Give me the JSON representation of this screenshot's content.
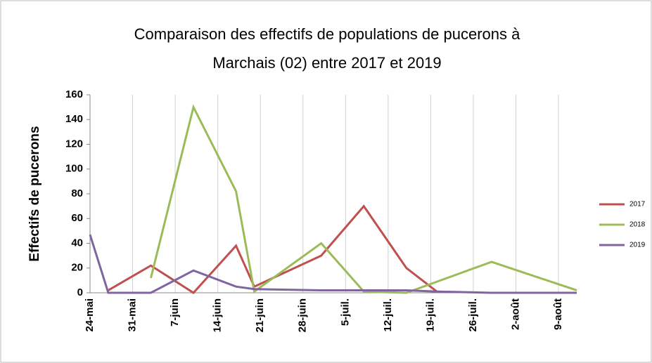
{
  "chart_data": {
    "type": "line",
    "title": [
      "Comparaison  des effectifs de populations  de pucerons à",
      "Marchais (02) entre 2017 et 2019"
    ],
    "y_label": "Effectifs de pucerons",
    "xlim": [
      0,
      80
    ],
    "xticks": [
      {
        "value": 0,
        "label": "24-mai"
      },
      {
        "value": 7,
        "label": "31-mai"
      },
      {
        "value": 14,
        "label": "7-juin"
      },
      {
        "value": 21,
        "label": "14-juin"
      },
      {
        "value": 28,
        "label": "21-juin"
      },
      {
        "value": 35,
        "label": "28-juin"
      },
      {
        "value": 42,
        "label": "5-juil."
      },
      {
        "value": 49,
        "label": "12-juil."
      },
      {
        "value": 56,
        "label": "19-juil."
      },
      {
        "value": 63,
        "label": "26-juil."
      },
      {
        "value": 70,
        "label": "2-août"
      },
      {
        "value": 77,
        "label": "9-août"
      }
    ],
    "ylim": [
      0,
      160
    ],
    "yticks": [
      0,
      20,
      40,
      60,
      80,
      100,
      120,
      140,
      160
    ],
    "grid": true,
    "legend": "right",
    "series": [
      {
        "name": "2017",
        "color": "#c0504d",
        "x": [
          3,
          10,
          17,
          24,
          27,
          38,
          45,
          52,
          57
        ],
        "values": [
          2,
          22,
          0,
          38,
          5,
          30,
          70,
          20,
          1
        ]
      },
      {
        "name": "2018",
        "color": "#9bbb59",
        "x": [
          10,
          17,
          24,
          27,
          38,
          45,
          52,
          66,
          80
        ],
        "values": [
          12,
          150,
          82,
          1,
          40,
          1,
          0,
          25,
          2
        ]
      },
      {
        "name": "2019",
        "color": "#8064a2",
        "x": [
          0,
          3,
          10,
          17,
          24,
          27,
          38,
          45,
          52,
          57,
          66,
          80
        ],
        "values": [
          47,
          0,
          0,
          18,
          5,
          3,
          2,
          2,
          2,
          1,
          0,
          0
        ]
      }
    ]
  }
}
